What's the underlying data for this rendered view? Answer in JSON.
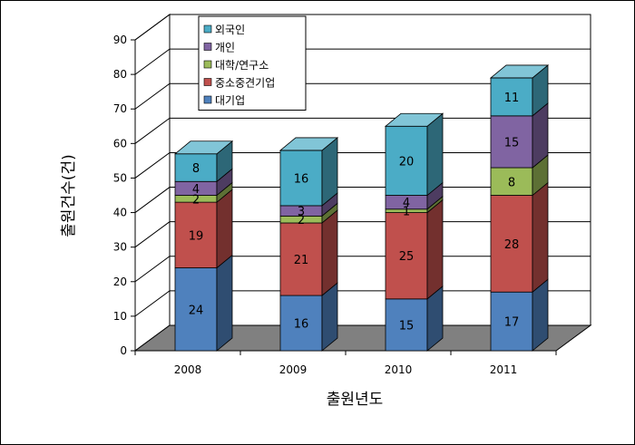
{
  "chart_data": {
    "type": "bar",
    "stacked": true,
    "three_d": true,
    "title": "",
    "xlabel": "출원년도",
    "ylabel": "출원건수(건)",
    "ylim": [
      0,
      90
    ],
    "yticks": [
      0,
      10,
      20,
      30,
      40,
      50,
      60,
      70,
      80,
      90
    ],
    "categories": [
      "2008",
      "2009",
      "2010",
      "2011"
    ],
    "grid": true,
    "legend_position": "top-left",
    "series": [
      {
        "name": "대기업",
        "values": [
          24,
          16,
          15,
          17
        ],
        "color": "#4F81BD"
      },
      {
        "name": "중소중견기업",
        "values": [
          19,
          21,
          25,
          28
        ],
        "color": "#C0504D"
      },
      {
        "name": "대학/연구소",
        "values": [
          2,
          2,
          1,
          8
        ],
        "color": "#9BBB59"
      },
      {
        "name": "개인",
        "values": [
          4,
          3,
          4,
          15
        ],
        "color": "#8064A2"
      },
      {
        "name": "외국인",
        "values": [
          8,
          16,
          20,
          11
        ],
        "color": "#4BACC6"
      }
    ],
    "legend_order": [
      "외국인",
      "개인",
      "대학/연구소",
      "중소중견기업",
      "대기업"
    ]
  }
}
